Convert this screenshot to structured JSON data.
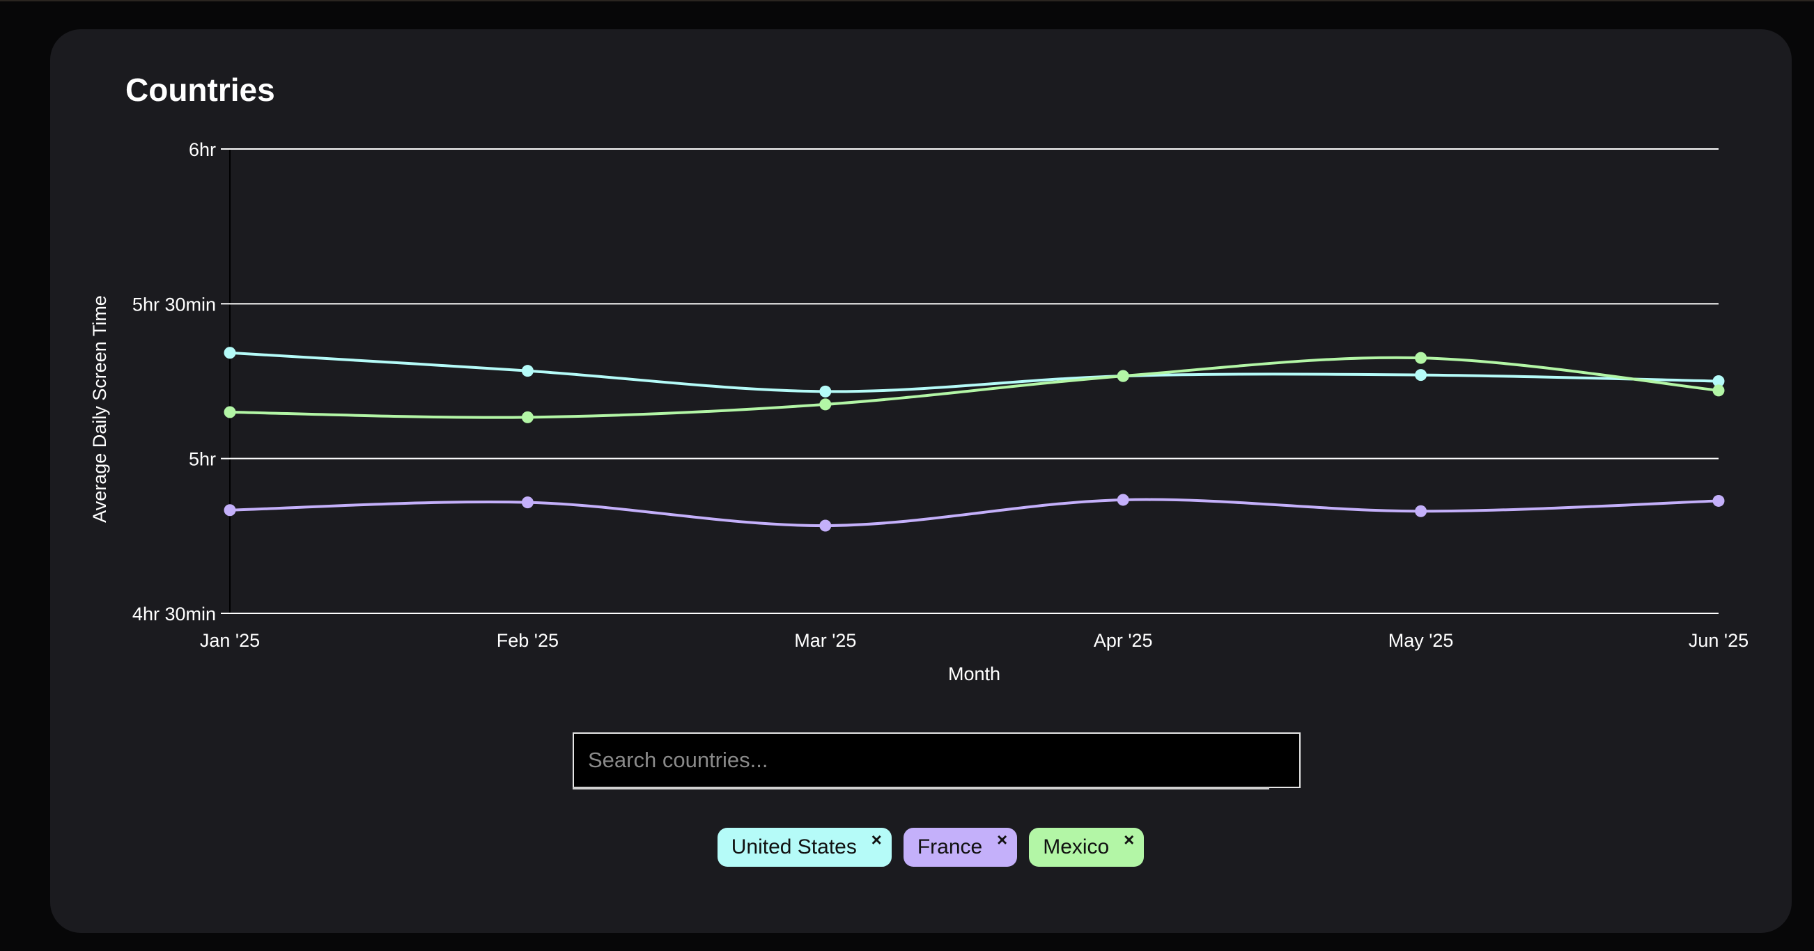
{
  "title": "Countries",
  "search": {
    "placeholder": "Search countries..."
  },
  "chips": [
    {
      "label": "United States",
      "color": "#b5fbf8",
      "remove_glyph": "×"
    },
    {
      "label": "France",
      "color": "#c4b0fa",
      "remove_glyph": "×"
    },
    {
      "label": "Mexico",
      "color": "#b3f6a6",
      "remove_glyph": "×"
    }
  ],
  "chart_data": {
    "type": "line",
    "xlabel": "Month",
    "ylabel": "Average Daily Screen Time",
    "categories": [
      "Jan '25",
      "Feb '25",
      "Mar '25",
      "Apr '25",
      "May '25",
      "Jun '25"
    ],
    "yticks": [
      {
        "value": 270,
        "label": "4hr 30min"
      },
      {
        "value": 300,
        "label": "5hr"
      },
      {
        "value": 330,
        "label": "5hr 30min"
      },
      {
        "value": 360,
        "label": "6hr"
      }
    ],
    "ylim": [
      270,
      360
    ],
    "grid": true,
    "series": [
      {
        "name": "United States",
        "color": "#b5fbf8",
        "values": [
          320.5,
          317,
          313,
          316,
          316.2,
          315
        ]
      },
      {
        "name": "France",
        "color": "#c4b0fa",
        "values": [
          290,
          291.5,
          287,
          292,
          289.8,
          291.8
        ]
      },
      {
        "name": "Mexico",
        "color": "#b3f6a6",
        "values": [
          309,
          308,
          310.5,
          316,
          319.5,
          313.2
        ]
      }
    ]
  }
}
